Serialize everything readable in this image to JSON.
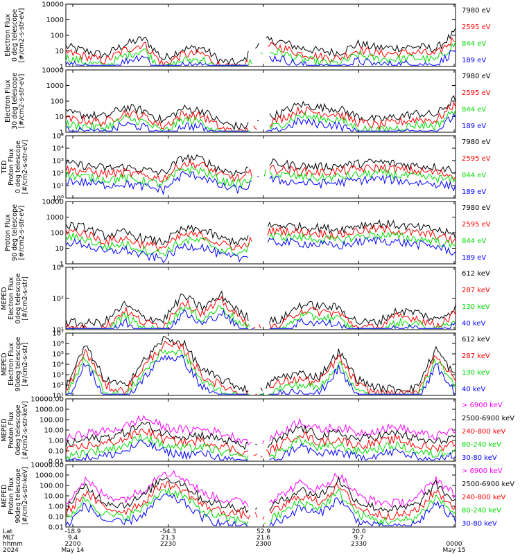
{
  "chart_data": [
    {
      "type": "line",
      "ylabel": [
        "Electron Flux",
        "0 deg telescope",
        "[#/cm2-s-str-eV]"
      ],
      "yscale": "log",
      "ylim": [
        1,
        10000
      ],
      "yticks": [
        "1",
        "10",
        "100",
        "1000",
        "10000"
      ],
      "series": [
        {
          "name": "7980 eV",
          "color": "#000000"
        },
        {
          "name": "2595 eV",
          "color": "#ff0000"
        },
        {
          "name": "844 eV",
          "color": "#00dd00"
        },
        {
          "name": "189 eV",
          "color": "#0000ff"
        }
      ],
      "profile": [
        0.32,
        0.25,
        0.18,
        0.35,
        0.45,
        0.12,
        0.28,
        0.3,
        0.08,
        0.05,
        0.42,
        0.4,
        0.3,
        0.25,
        0.22,
        0.36,
        0.3,
        0.3,
        0.32,
        0.28,
        0.55
      ]
    },
    {
      "type": "line",
      "ylabel": [
        "Electron Flux",
        "30 deg telescope",
        "[#/cm2-s-str-eV]"
      ],
      "yscale": "log",
      "ylim": [
        1,
        10000
      ],
      "yticks": [
        "1",
        "10",
        "100",
        "1000",
        "10000"
      ],
      "series": [
        {
          "name": "7980 eV",
          "color": "#000000"
        },
        {
          "name": "2595 eV",
          "color": "#ff0000"
        },
        {
          "name": "844 eV",
          "color": "#00dd00"
        },
        {
          "name": "189 eV",
          "color": "#0000ff"
        }
      ],
      "profile": [
        0.3,
        0.28,
        0.25,
        0.4,
        0.35,
        0.18,
        0.38,
        0.35,
        0.15,
        0.08,
        0.2,
        0.3,
        0.45,
        0.4,
        0.38,
        0.25,
        0.2,
        0.25,
        0.3,
        0.28,
        0.55
      ]
    },
    {
      "type": "line",
      "ylabel": [
        "TED",
        "Proton Flux",
        "0 deg telescope",
        "[#/cm2-s-str-eV]"
      ],
      "yscale": "log",
      "ylim": [
        1,
        100000
      ],
      "yticks": [
        "10⁰",
        "10¹",
        "10²",
        "10³",
        "10⁴",
        "10⁵"
      ],
      "series": [
        {
          "name": "7980 eV",
          "color": "#000000"
        },
        {
          "name": "2595 eV",
          "color": "#ff0000"
        },
        {
          "name": "844 eV",
          "color": "#00dd00"
        },
        {
          "name": "189 eV",
          "color": "#0000ff"
        }
      ],
      "profile": [
        0.55,
        0.52,
        0.48,
        0.5,
        0.45,
        0.4,
        0.65,
        0.62,
        0.45,
        0.4,
        0.58,
        0.55,
        0.52,
        0.5,
        0.52,
        0.55,
        0.58,
        0.55,
        0.52,
        0.5,
        0.45
      ]
    },
    {
      "type": "line",
      "ylabel": [
        "Proton Flux",
        "90 deg telescope",
        "[#/cm2-s-str-eV]"
      ],
      "yscale": "log",
      "ylim": [
        1,
        10000
      ],
      "yticks": [
        "1",
        "10",
        "100",
        "1000",
        "10000"
      ],
      "series": [
        {
          "name": "7980 eV",
          "color": "#000000"
        },
        {
          "name": "2595 eV",
          "color": "#ff0000"
        },
        {
          "name": "844 eV",
          "color": "#00dd00"
        },
        {
          "name": "189 eV",
          "color": "#0000ff"
        }
      ],
      "profile": [
        0.62,
        0.58,
        0.45,
        0.5,
        0.4,
        0.35,
        0.55,
        0.55,
        0.4,
        0.35,
        0.6,
        0.62,
        0.6,
        0.58,
        0.55,
        0.62,
        0.65,
        0.62,
        0.58,
        0.55,
        0.45
      ]
    },
    {
      "type": "line",
      "ylabel": [
        "MEPED",
        "Electron Flux",
        "0deg telescope",
        "[#/cm2-s-str]"
      ],
      "yscale": "log",
      "ylim": [
        10,
        1000
      ],
      "yticks": [
        "10¹",
        "10²",
        "10³"
      ],
      "series": [
        {
          "name": "612 keV",
          "color": "#000000"
        },
        {
          "name": "287 keV",
          "color": "#ff0000"
        },
        {
          "name": "130 keV",
          "color": "#00dd00"
        },
        {
          "name": "40 keV",
          "color": "#0000ff"
        }
      ],
      "profile": [
        0.12,
        0.1,
        0.12,
        0.4,
        0.2,
        0.15,
        0.55,
        0.35,
        0.55,
        0.25,
        0.12,
        0.15,
        0.4,
        0.38,
        0.35,
        0.12,
        0.12,
        0.3,
        0.28,
        0.15,
        0.35
      ]
    },
    {
      "type": "line",
      "ylabel": [
        "MEPED",
        "Electron Flux",
        "90deg telescope",
        "[#/cm2-s-str]"
      ],
      "yscale": "log",
      "ylim": [
        10,
        10000000
      ],
      "yticks": [
        "10¹",
        "10²",
        "10³",
        "10⁴",
        "10⁵",
        "10⁶",
        "10⁷"
      ],
      "series": [
        {
          "name": "612 keV",
          "color": "#000000"
        },
        {
          "name": "287 keV",
          "color": "#ff0000"
        },
        {
          "name": "130 keV",
          "color": "#00dd00"
        },
        {
          "name": "40 keV",
          "color": "#0000ff"
        }
      ],
      "profile": [
        0.15,
        0.8,
        0.25,
        0.15,
        0.55,
        0.9,
        0.85,
        0.4,
        0.25,
        0.12,
        0.1,
        0.3,
        0.35,
        0.3,
        0.7,
        0.25,
        0.12,
        0.1,
        0.12,
        0.75,
        0.3
      ]
    },
    {
      "type": "line",
      "ylabel": [
        "MEPED",
        "Proton Flux",
        "0deg telescope",
        "[#/cm2-s-str-keV]"
      ],
      "yscale": "log",
      "ylim": [
        0.01,
        10000
      ],
      "yticks": [
        "0.01",
        "0.10",
        "1.00",
        "10.00",
        "100.00",
        "1000.00",
        "10000.00"
      ],
      "series": [
        {
          "name": "> 6900 keV",
          "color": "#ff00ff"
        },
        {
          "name": "2500-6900 keV",
          "color": "#000000"
        },
        {
          "name": "240-800 keV",
          "color": "#ff0000"
        },
        {
          "name": "80-240 keV",
          "color": "#00dd00"
        },
        {
          "name": "30-80 keV",
          "color": "#0000ff"
        }
      ],
      "profile": [
        0.35,
        0.45,
        0.48,
        0.55,
        0.7,
        0.55,
        0.5,
        0.52,
        0.45,
        0.35,
        0.3,
        0.45,
        0.65,
        0.5,
        0.55,
        0.45,
        0.5,
        0.55,
        0.45,
        0.4,
        0.5
      ]
    },
    {
      "type": "line",
      "ylabel": [
        "MEPED",
        "Proton Flux",
        "90deg telescope",
        "[#/cm2-s-str-keV]"
      ],
      "yscale": "log",
      "ylim": [
        0.01,
        10000
      ],
      "yticks": [
        "0.01",
        "0.10",
        "1.00",
        "10.00",
        "100.00",
        "1000.00",
        "10000.00"
      ],
      "series": [
        {
          "name": "> 6900 keV",
          "color": "#ff00ff"
        },
        {
          "name": "2500-6900 keV",
          "color": "#000000"
        },
        {
          "name": "240-800 keV",
          "color": "#ff0000"
        },
        {
          "name": "80-240 keV",
          "color": "#00dd00"
        },
        {
          "name": "30-80 keV",
          "color": "#0000ff"
        }
      ],
      "profile": [
        0.4,
        0.75,
        0.5,
        0.45,
        0.6,
        0.9,
        0.8,
        0.55,
        0.45,
        0.4,
        0.35,
        0.5,
        0.7,
        0.6,
        0.85,
        0.5,
        0.4,
        0.38,
        0.45,
        0.78,
        0.5
      ]
    }
  ],
  "x_axis": {
    "row_labels": [
      "Lat",
      "MLT",
      "hhmm",
      "2024"
    ],
    "ticks": [
      {
        "lat": "-18.9",
        "mlt": "9.4",
        "hhmm": "2200",
        "extra": "May 14"
      },
      {
        "lat": "-54.3",
        "mlt": "21.3",
        "hhmm": "2230",
        "extra": ""
      },
      {
        "lat": "52.9",
        "mlt": "21.6",
        "hhmm": "2300",
        "extra": ""
      },
      {
        "lat": "20.0",
        "mlt": "9.7",
        "hhmm": "2330",
        "extra": ""
      },
      {
        "lat": "",
        "mlt": "",
        "hhmm": "0000",
        "extra": "May 15"
      }
    ]
  }
}
